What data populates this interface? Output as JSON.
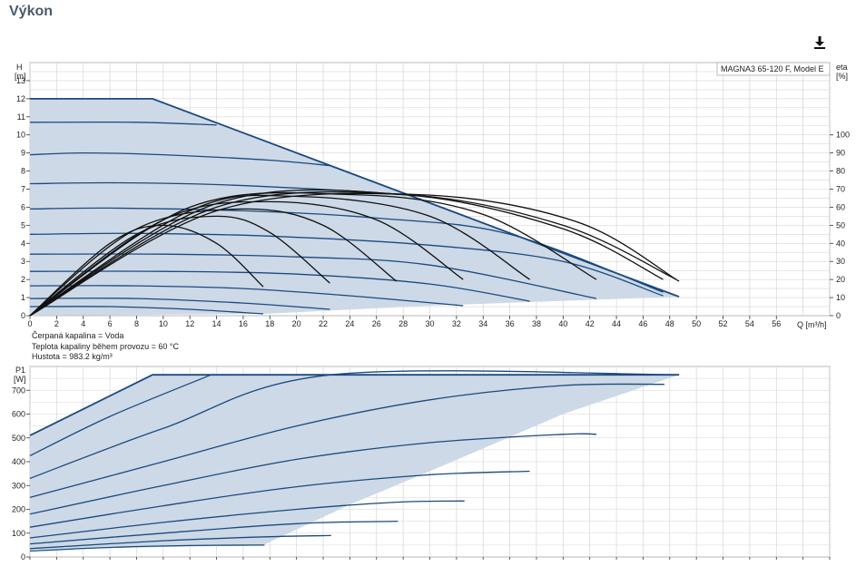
{
  "page": {
    "title": "Výkon"
  },
  "toolbar": {
    "download_icon": "download-icon"
  },
  "colors": {
    "area_fill": "#cdd9e6",
    "curve_blue": "#1b4a80",
    "efficiency_black": "#111111",
    "grid": "#d6d6d6"
  },
  "chart_data": [
    {
      "type": "line",
      "legend_text": "MAGNA3 65-120 F, Model E",
      "legend_position": "top-right",
      "xlabel": "Q [m³/h]",
      "ylabel_line1": "H",
      "ylabel_line2": "[m]",
      "y2label_line1": "eta",
      "y2label_line2": "[%]",
      "xlim": [
        0,
        60
      ],
      "ylim": [
        0,
        14
      ],
      "y2lim": [
        0,
        140
      ],
      "xticks": [
        0,
        2,
        4,
        6,
        8,
        10,
        12,
        14,
        16,
        18,
        20,
        22,
        24,
        26,
        28,
        30,
        32,
        34,
        36,
        38,
        40,
        42,
        44,
        46,
        48,
        50,
        52,
        54,
        56
      ],
      "yticks": [
        0,
        1,
        2,
        3,
        4,
        5,
        6,
        7,
        8,
        9,
        10,
        11,
        12,
        13
      ],
      "y2ticks": [
        0,
        10,
        20,
        30,
        40,
        50,
        60,
        70,
        80,
        90,
        100
      ],
      "grid": true,
      "operating_area": [
        [
          0,
          12
        ],
        [
          9.2,
          12
        ],
        [
          48.7,
          1.05
        ],
        [
          30,
          0.55
        ],
        [
          17.5,
          0.1
        ],
        [
          0,
          0
        ]
      ],
      "head_curves": [
        {
          "x": [
            0,
            9.2,
            48.7
          ],
          "y": [
            12,
            12,
            1.05
          ],
          "max_curve": true
        },
        {
          "x": [
            0,
            8,
            14
          ],
          "y": [
            10.7,
            10.7,
            10.55
          ]
        },
        {
          "x": [
            0,
            4,
            10,
            18,
            22.5
          ],
          "y": [
            8.9,
            9.0,
            8.9,
            8.6,
            8.3
          ]
        },
        {
          "x": [
            0,
            6,
            14,
            24,
            30.5
          ],
          "y": [
            7.3,
            7.35,
            7.25,
            6.9,
            6.55
          ]
        },
        {
          "x": [
            0,
            6,
            16,
            26,
            36,
            47.5
          ],
          "y": [
            5.9,
            5.95,
            5.8,
            5.4,
            4.5,
            1.3
          ]
        },
        {
          "x": [
            0,
            8,
            18,
            30,
            40,
            47.5
          ],
          "y": [
            4.5,
            4.55,
            4.4,
            3.9,
            3.0,
            1.1
          ]
        },
        {
          "x": [
            0,
            10,
            20,
            30,
            42.5
          ],
          "y": [
            3.4,
            3.4,
            3.25,
            2.8,
            0.95
          ]
        },
        {
          "x": [
            0,
            10,
            20,
            30,
            37.5
          ],
          "y": [
            2.45,
            2.45,
            2.3,
            1.75,
            0.8
          ]
        },
        {
          "x": [
            0,
            8,
            16,
            24,
            32.5
          ],
          "y": [
            1.65,
            1.65,
            1.5,
            1.1,
            0.55
          ]
        },
        {
          "x": [
            0,
            8,
            16,
            22.5
          ],
          "y": [
            0.95,
            0.95,
            0.7,
            0.35
          ]
        },
        {
          "x": [
            0,
            6,
            12,
            17.5
          ],
          "y": [
            0.5,
            0.5,
            0.35,
            0.1
          ]
        }
      ],
      "efficiency_curves": [
        {
          "x": [
            0,
            6,
            10,
            14,
            17.5
          ],
          "y": [
            0,
            40,
            50,
            40,
            16
          ]
        },
        {
          "x": [
            0,
            8,
            14,
            18,
            22.5
          ],
          "y": [
            0,
            45,
            55,
            46,
            18
          ]
        },
        {
          "x": [
            0,
            8,
            16,
            22,
            27.5
          ],
          "y": [
            0,
            48,
            59,
            50,
            19
          ]
        },
        {
          "x": [
            0,
            10,
            18,
            26,
            32.5
          ],
          "y": [
            0,
            53,
            63,
            53,
            20
          ]
        },
        {
          "x": [
            0,
            12,
            20,
            30,
            37.5
          ],
          "y": [
            0,
            58,
            66,
            55,
            20
          ]
        },
        {
          "x": [
            0,
            12,
            24,
            34,
            42.5
          ],
          "y": [
            0,
            60,
            67,
            56,
            20
          ]
        },
        {
          "x": [
            0,
            14,
            28,
            40,
            47.5
          ],
          "y": [
            0,
            62,
            67,
            48,
            20
          ]
        },
        {
          "x": [
            0,
            14,
            28,
            40,
            48.5
          ],
          "y": [
            0,
            60,
            67,
            50,
            20
          ]
        },
        {
          "x": [
            0,
            14,
            29,
            41,
            48.7
          ],
          "y": [
            0,
            58,
            67,
            52,
            19
          ]
        }
      ],
      "notes": [
        "Čerpaná kapalina = Voda",
        "Teplota kapaliny během provozu = 60 °C",
        "Hustota = 983.2 kg/m³"
      ]
    },
    {
      "type": "line",
      "ylabel_line1": "P1",
      "ylabel_line2": "[W]",
      "xlim": [
        0,
        60
      ],
      "ylim": [
        0,
        800
      ],
      "yticks": [
        0,
        100,
        200,
        300,
        400,
        500,
        600,
        700
      ],
      "grid": true,
      "operating_area": [
        [
          0,
          510
        ],
        [
          9.2,
          765
        ],
        [
          48.7,
          765
        ],
        [
          40,
          600
        ],
        [
          30,
          360
        ],
        [
          24,
          220
        ],
        [
          17.5,
          50
        ],
        [
          0,
          30
        ]
      ],
      "power_curves": [
        {
          "x": [
            0,
            9.2,
            48.7
          ],
          "y": [
            510,
            765,
            765
          ],
          "max_curve": true
        },
        {
          "x": [
            0,
            6,
            13.6
          ],
          "y": [
            425,
            590,
            765
          ]
        },
        {
          "x": [
            0,
            10,
            22.6,
            48.7
          ],
          "y": [
            330,
            540,
            765,
            765
          ]
        },
        {
          "x": [
            0,
            10,
            20,
            30,
            40,
            47.6
          ],
          "y": [
            250,
            400,
            550,
            660,
            720,
            725
          ]
        },
        {
          "x": [
            0,
            10,
            20,
            30,
            40,
            42.5
          ],
          "y": [
            180,
            300,
            410,
            480,
            515,
            515
          ]
        },
        {
          "x": [
            0,
            10,
            20,
            30,
            37.5
          ],
          "y": [
            125,
            215,
            295,
            345,
            360
          ]
        },
        {
          "x": [
            0,
            10,
            20,
            27.5,
            32.6
          ],
          "y": [
            80,
            145,
            200,
            230,
            235
          ]
        },
        {
          "x": [
            0,
            10,
            20,
            27.6
          ],
          "y": [
            55,
            100,
            140,
            150
          ]
        },
        {
          "x": [
            0,
            10,
            18,
            22.6
          ],
          "y": [
            35,
            68,
            85,
            90
          ]
        },
        {
          "x": [
            0,
            6,
            12,
            17.6
          ],
          "y": [
            25,
            40,
            48,
            50
          ]
        }
      ]
    }
  ]
}
